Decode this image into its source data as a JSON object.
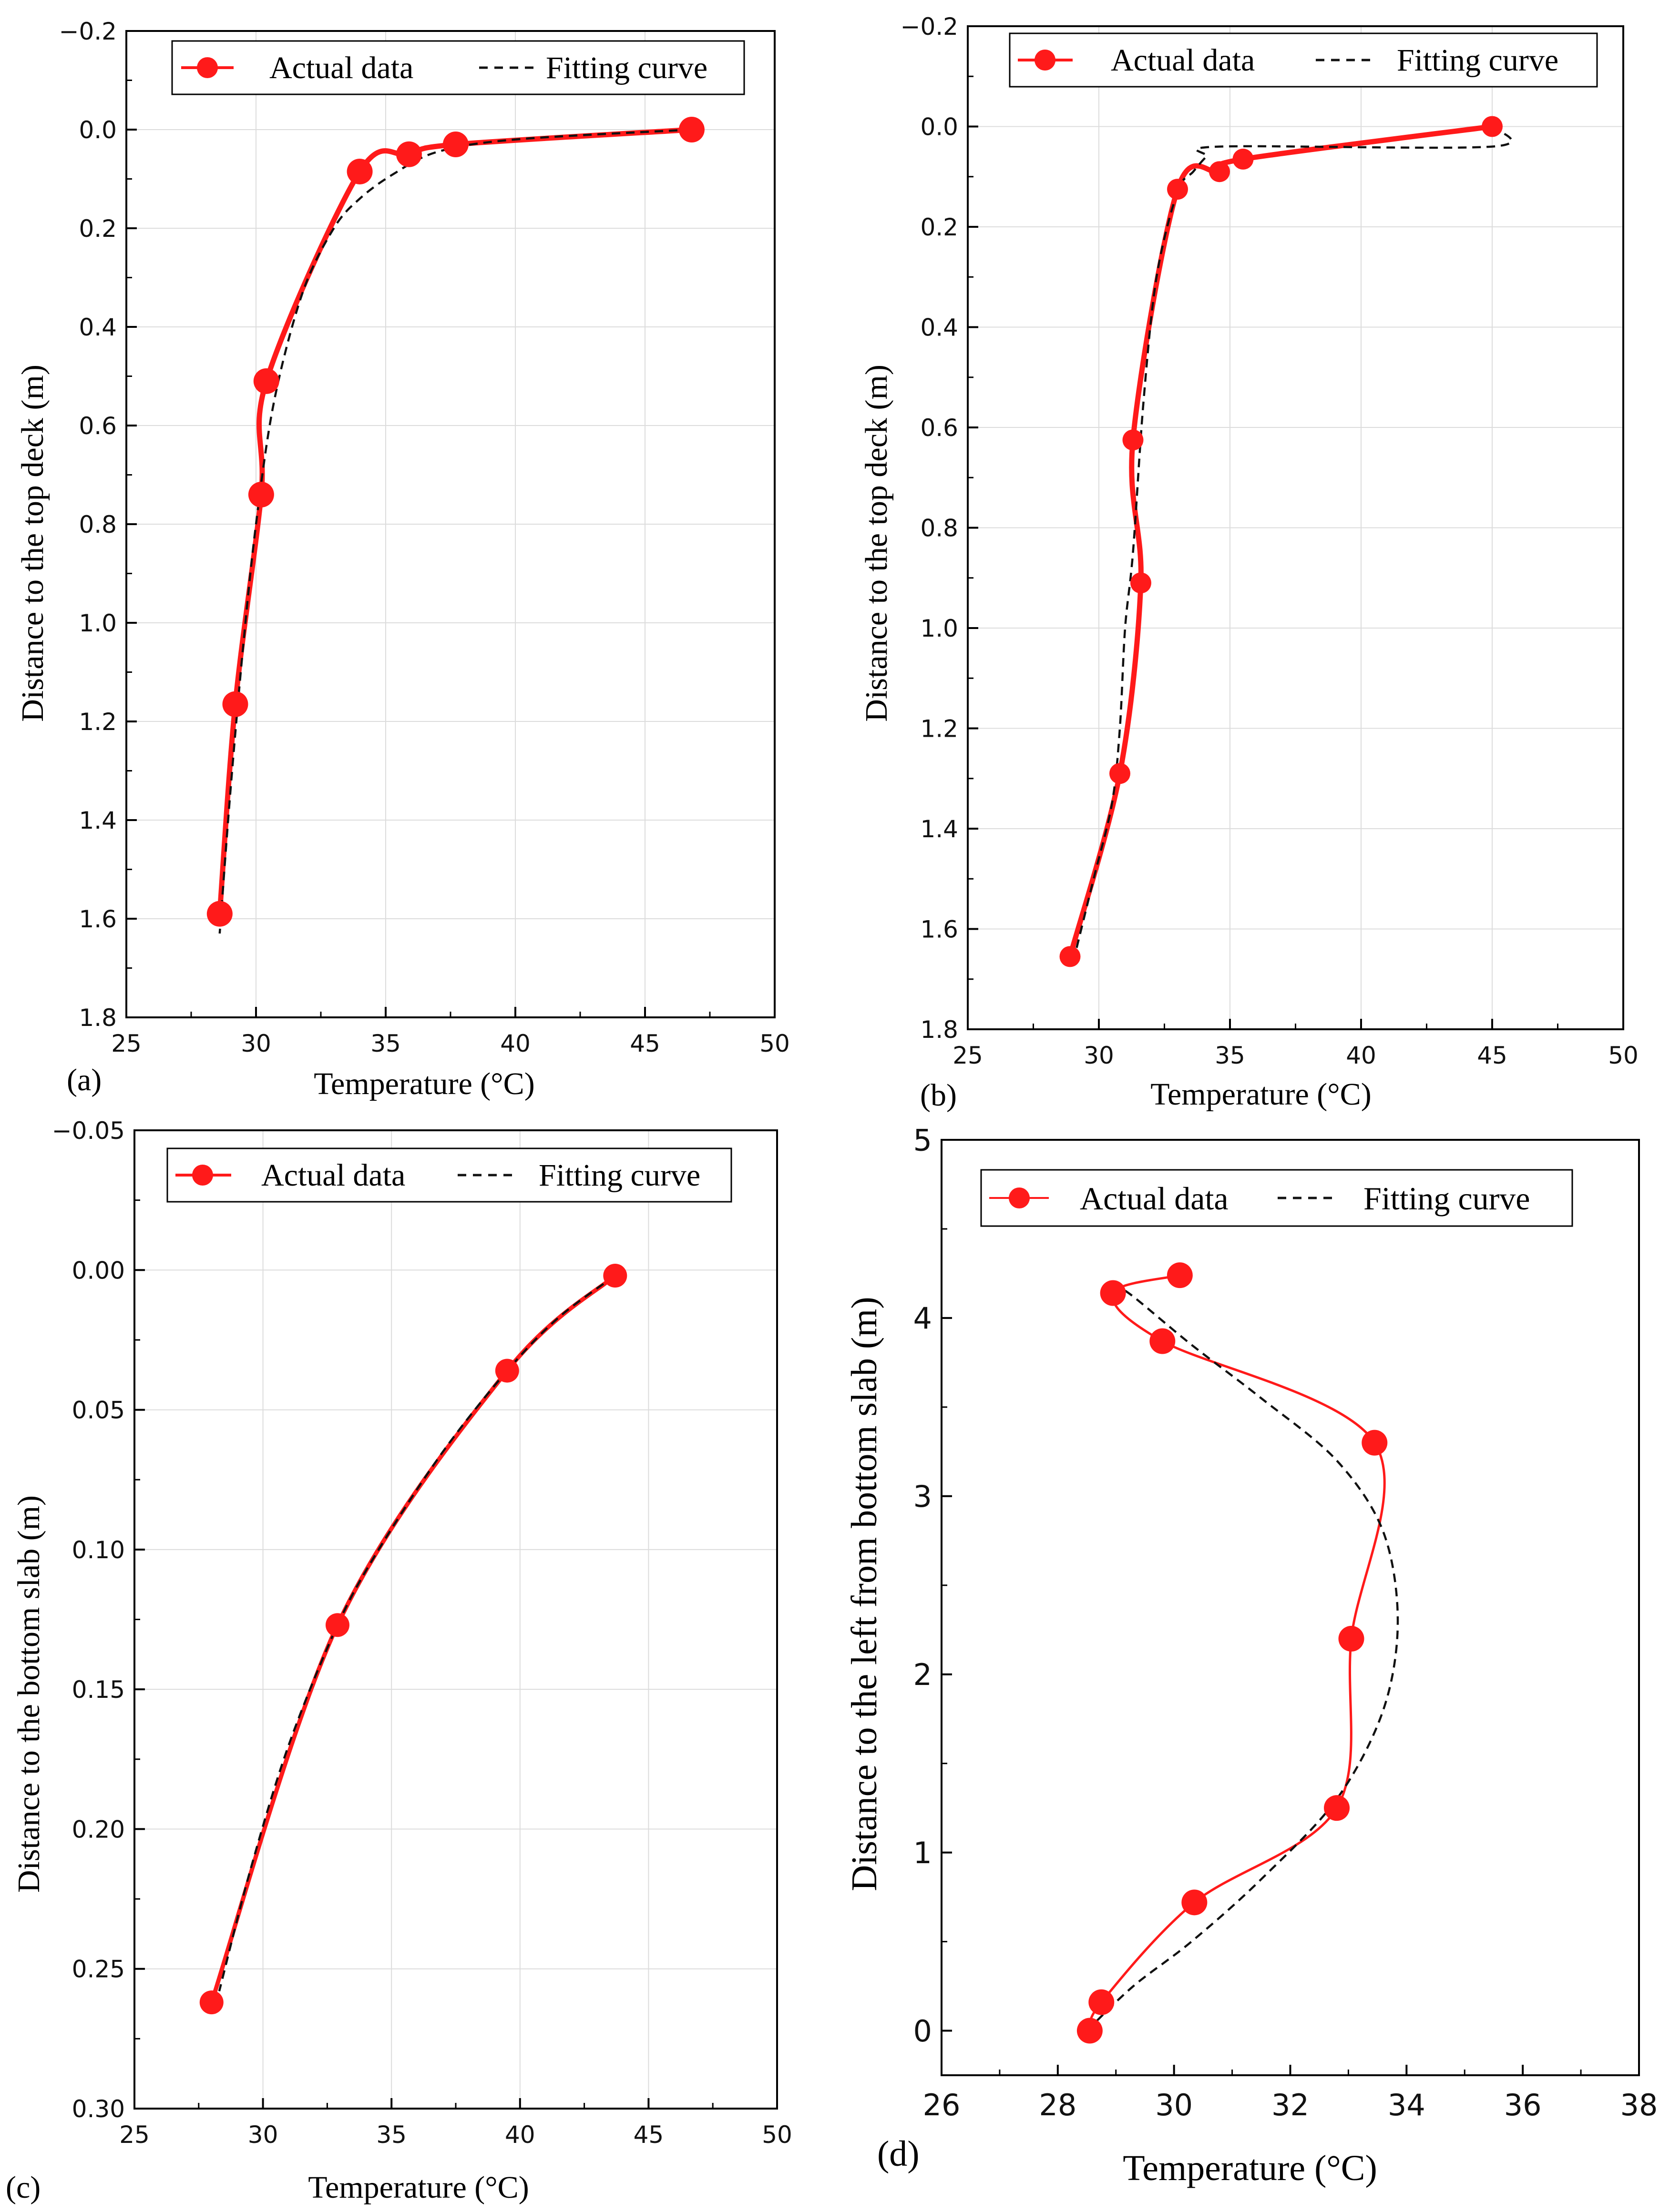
{
  "colors": {
    "actual": "#ff1a1a",
    "fit": "#111111",
    "grid": "#dcdcdc",
    "axis": "#000000"
  },
  "chart_data": [
    {
      "type": "line",
      "panel_label": "(a)",
      "xlabel": "Temperature (°C)",
      "ylabel": "Distance to the top deck (m)",
      "xlim": [
        25,
        50
      ],
      "ylim": [
        -0.2,
        1.8
      ],
      "y_inverted": true,
      "xticks": [
        25,
        30,
        35,
        40,
        45,
        50
      ],
      "xtick_labels": [
        "25",
        "30",
        "35",
        "40",
        "45",
        "50"
      ],
      "yticks": [
        -0.2,
        0.0,
        0.2,
        0.4,
        0.6,
        0.8,
        1.0,
        1.2,
        1.4,
        1.6,
        1.8
      ],
      "ytick_labels": [
        "−0.2",
        "0.0",
        "0.2",
        "0.4",
        "0.6",
        "0.8",
        "1.0",
        "1.2",
        "1.4",
        "1.6",
        "1.8"
      ],
      "grid": true,
      "legend": {
        "position": "top",
        "entries": [
          "Actual data",
          "Fitting curve"
        ]
      },
      "series": [
        {
          "name": "Actual data",
          "style": "solid-marker",
          "x": [
            46.8,
            37.7,
            35.9,
            34.0,
            30.4,
            30.2,
            29.2,
            28.6
          ],
          "y": [
            0.0,
            0.03,
            0.05,
            0.085,
            0.51,
            0.74,
            1.165,
            1.59
          ]
        },
        {
          "name": "Fitting curve",
          "style": "dashed",
          "x": [
            46.8,
            40.0,
            37.0,
            35.3,
            34.0,
            33.0,
            31.8,
            30.7,
            30.0,
            29.5,
            29.0,
            28.6
          ],
          "y": [
            0.0,
            0.02,
            0.045,
            0.09,
            0.14,
            0.2,
            0.33,
            0.55,
            0.8,
            1.05,
            1.35,
            1.63
          ]
        }
      ]
    },
    {
      "type": "line",
      "panel_label": "(b)",
      "xlabel": "Temperature (°C)",
      "ylabel": "Distance to the top deck (m)",
      "xlim": [
        25,
        50
      ],
      "ylim": [
        -0.2,
        1.8
      ],
      "y_inverted": true,
      "xticks": [
        25,
        30,
        35,
        40,
        45,
        50
      ],
      "xtick_labels": [
        "25",
        "30",
        "35",
        "40",
        "45",
        "50"
      ],
      "yticks": [
        -0.2,
        0.0,
        0.2,
        0.4,
        0.6,
        0.8,
        1.0,
        1.2,
        1.4,
        1.6,
        1.8
      ],
      "ytick_labels": [
        "−0.2",
        "0.0",
        "0.2",
        "0.4",
        "0.6",
        "0.8",
        "1.0",
        "1.2",
        "1.4",
        "1.6",
        "1.8"
      ],
      "grid": true,
      "legend": {
        "position": "top",
        "entries": [
          "Actual data",
          "Fitting curve"
        ]
      },
      "series": [
        {
          "name": "Actual data",
          "style": "solid-marker",
          "x": [
            45.0,
            35.5,
            34.6,
            33.0,
            31.3,
            31.6,
            30.8,
            28.9
          ],
          "y": [
            0.0,
            0.065,
            0.09,
            0.125,
            0.625,
            0.91,
            1.29,
            1.655
          ]
        },
        {
          "name": "Fitting curve",
          "style": "dashed",
          "x": [
            45.0,
            45.0,
            34.6,
            34.1,
            33.6,
            33.0,
            32.2,
            31.7,
            31.3,
            31.0,
            30.8,
            30.5,
            29.8,
            29.0
          ],
          "y": [
            0.0,
            0.04,
            0.04,
            0.06,
            0.09,
            0.13,
            0.3,
            0.55,
            0.85,
            1.0,
            1.2,
            1.35,
            1.5,
            1.67
          ]
        }
      ]
    },
    {
      "type": "line",
      "panel_label": "(c)",
      "xlabel": "Temperature (°C)",
      "ylabel": "Distance to the bottom slab (m)",
      "xlim": [
        25,
        50
      ],
      "ylim": [
        -0.05,
        0.3
      ],
      "y_inverted": true,
      "xticks": [
        25,
        30,
        35,
        40,
        45,
        50
      ],
      "xtick_labels": [
        "25",
        "30",
        "35",
        "40",
        "45",
        "50"
      ],
      "yticks": [
        -0.05,
        0.0,
        0.05,
        0.1,
        0.15,
        0.2,
        0.25,
        0.3
      ],
      "ytick_labels": [
        "−0.05",
        "0.00",
        "0.05",
        "0.10",
        "0.15",
        "0.20",
        "0.25",
        "0.30"
      ],
      "grid": true,
      "legend": {
        "position": "top",
        "entries": [
          "Actual data",
          "Fitting curve"
        ]
      },
      "series": [
        {
          "name": "Actual data",
          "style": "solid-marker",
          "x": [
            43.7,
            39.5,
            32.9,
            28.0
          ],
          "y": [
            0.002,
            0.036,
            0.127,
            0.262
          ]
        },
        {
          "name": "Fitting curve",
          "style": "dashed",
          "x": [
            43.7,
            41.5,
            39.5,
            37.0,
            34.5,
            32.9,
            31.0,
            29.5,
            28.3
          ],
          "y": [
            0.002,
            0.017,
            0.036,
            0.065,
            0.1,
            0.127,
            0.17,
            0.215,
            0.258
          ]
        }
      ]
    },
    {
      "type": "line",
      "panel_label": "(d)",
      "xlabel": "Temperature (°C)",
      "ylabel": "Distance to the left from bottom slab (m)",
      "xlim": [
        26,
        38
      ],
      "ylim": [
        -0.25,
        5
      ],
      "y_inverted": false,
      "xticks": [
        26,
        28,
        30,
        32,
        34,
        36,
        38
      ],
      "xtick_labels": [
        "26",
        "28",
        "30",
        "32",
        "34",
        "36",
        "38"
      ],
      "yticks": [
        0,
        1,
        2,
        3,
        4,
        5
      ],
      "ytick_labels": [
        "0",
        "1",
        "2",
        "3",
        "4",
        "5"
      ],
      "grid": false,
      "legend": {
        "position": "top",
        "entries": [
          "Actual data",
          "Fitting curve"
        ]
      },
      "series": [
        {
          "name": "Actual data",
          "style": "thin-marker",
          "x": [
            28.55,
            28.75,
            30.35,
            32.8,
            33.05,
            33.45,
            29.8,
            28.95,
            30.1
          ],
          "y": [
            0.0,
            0.16,
            0.72,
            1.25,
            2.2,
            3.3,
            3.87,
            4.14,
            4.24
          ]
        },
        {
          "name": "Fitting curve",
          "style": "dashed",
          "x": [
            28.5,
            29.3,
            30.3,
            31.5,
            32.8,
            33.6,
            33.85,
            33.6,
            32.8,
            31.5,
            30.3,
            29.3,
            29.0
          ],
          "y": [
            0.0,
            0.25,
            0.5,
            0.85,
            1.3,
            1.8,
            2.3,
            2.8,
            3.2,
            3.55,
            3.85,
            4.12,
            4.18
          ]
        }
      ]
    }
  ]
}
